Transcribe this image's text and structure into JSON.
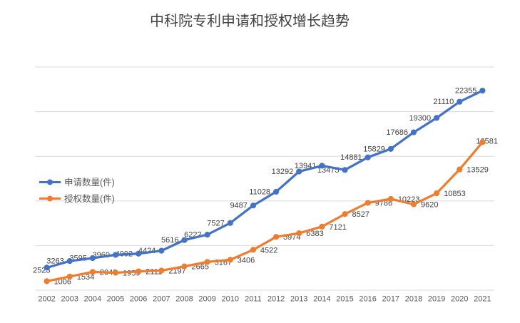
{
  "chart_data": {
    "type": "line",
    "title": "中科院专利申请和授权增长趋势",
    "xlabel": "",
    "ylabel": "",
    "categories": [
      "2002",
      "2003",
      "2004",
      "2005",
      "2006",
      "2007",
      "2008",
      "2009",
      "2010",
      "2011",
      "2012",
      "2013",
      "2014",
      "2015",
      "2016",
      "2017",
      "2018",
      "2019",
      "2020",
      "2021"
    ],
    "series": [
      {
        "name": "申请数量(件)",
        "color": "#4472C4",
        "values": [
          2523,
          3263,
          3595,
          3960,
          4092,
          4424,
          5616,
          6222,
          7527,
          9487,
          11028,
          13292,
          13941,
          13475,
          14881,
          15829,
          17686,
          19300,
          21110,
          22355
        ],
        "label_side": "left"
      },
      {
        "name": "授权数量(件)",
        "color": "#ED7D31",
        "values": [
          1006,
          1534,
          2048,
          1959,
          2111,
          2197,
          2665,
          3167,
          3406,
          4522,
          5974,
          6383,
          7121,
          8527,
          9786,
          10223,
          9620,
          10853,
          13529,
          16581
        ],
        "label_side": "right"
      }
    ],
    "ylim": [
      0,
      25000
    ],
    "y_gridline_step": 5000,
    "grid": true,
    "y_axis_labels_visible": false,
    "data_labels": true,
    "legend_position": "inside-left-middle",
    "colors": {
      "gridline": "#D9D9D9",
      "title_text": "#404040",
      "data_label_text": "#404040",
      "axis_text": "#595959",
      "legend_text": "#595959",
      "background": "#FFFFFF"
    }
  }
}
